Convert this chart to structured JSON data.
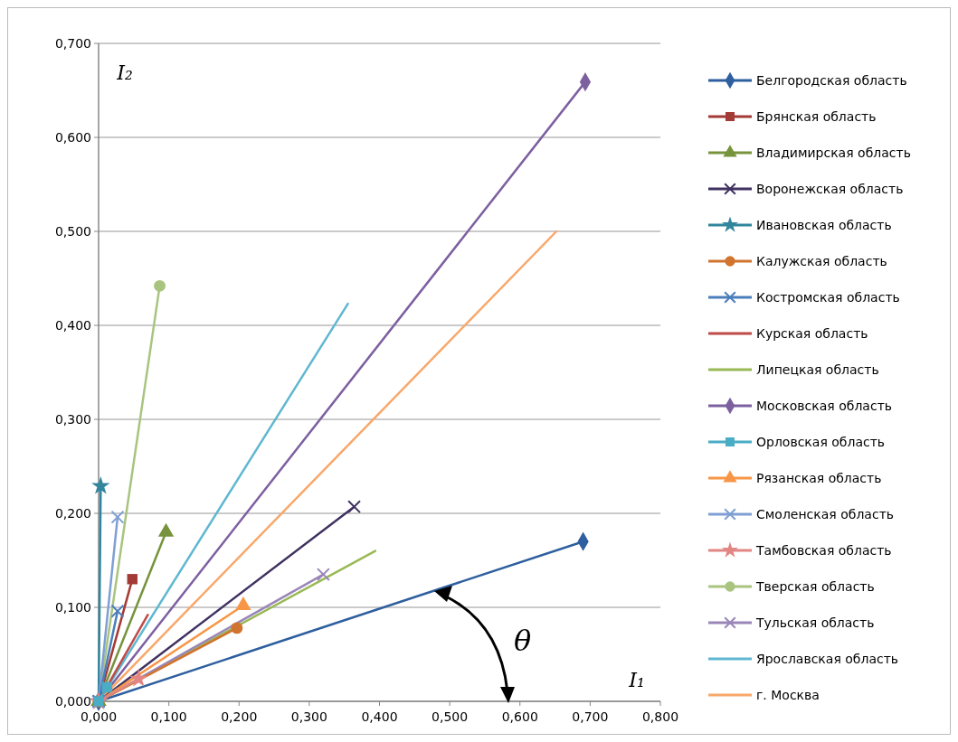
{
  "chart_data": {
    "type": "line",
    "xlabel": "I₁",
    "ylabel": "I₂",
    "annotations": [
      "θ"
    ],
    "xlim": [
      0,
      0.8
    ],
    "ylim": [
      0,
      0.7
    ],
    "xticks": [
      {
        "value": 0,
        "label": "0,000"
      },
      {
        "value": 0.1,
        "label": "0,100"
      },
      {
        "value": 0.2,
        "label": "0,200"
      },
      {
        "value": 0.3,
        "label": "0,300"
      },
      {
        "value": 0.4,
        "label": "0,400"
      },
      {
        "value": 0.5,
        "label": "0,500"
      },
      {
        "value": 0.6,
        "label": "0,600"
      },
      {
        "value": 0.7,
        "label": "0,700"
      },
      {
        "value": 0.8,
        "label": "0,800"
      }
    ],
    "yticks": [
      {
        "value": 0,
        "label": "0,000"
      },
      {
        "value": 0.1,
        "label": "0,100"
      },
      {
        "value": 0.2,
        "label": "0,200"
      },
      {
        "value": 0.3,
        "label": "0,300"
      },
      {
        "value": 0.4,
        "label": "0,400"
      },
      {
        "value": 0.5,
        "label": "0,500"
      },
      {
        "value": 0.6,
        "label": "0,600"
      },
      {
        "value": 0.7,
        "label": "0,700"
      }
    ],
    "grid": "y",
    "legend": "right",
    "series": [
      {
        "name": "Белгородская область",
        "color": "#2e5f9e",
        "marker": "diamond",
        "x": [
          0,
          0.69
        ],
        "values": [
          0,
          0.17
        ]
      },
      {
        "name": "Брянская область",
        "color": "#a33a35",
        "marker": "square",
        "x": [
          0,
          0.048
        ],
        "values": [
          0,
          0.13
        ]
      },
      {
        "name": "Владимирская область",
        "color": "#77933c",
        "marker": "triangle",
        "x": [
          0,
          0.096
        ],
        "values": [
          0,
          0.18
        ]
      },
      {
        "name": "Воронежская область",
        "color": "#3f3160",
        "marker": "cross",
        "x": [
          0,
          0.364
        ],
        "values": [
          0,
          0.207
        ]
      },
      {
        "name": "Ивановская область",
        "color": "#31859c",
        "marker": "star",
        "x": [
          0,
          0.003
        ],
        "values": [
          0,
          0.229
        ]
      },
      {
        "name": "Калужская область",
        "color": "#d0742f",
        "marker": "circle",
        "x": [
          0,
          0.197
        ],
        "values": [
          0,
          0.078
        ]
      },
      {
        "name": "Костромская область",
        "color": "#4a7ebb",
        "marker": "cross",
        "x": [
          0,
          0.027
        ],
        "values": [
          0,
          0.096
        ]
      },
      {
        "name": "Курская область",
        "color": "#be4b48",
        "marker": "none",
        "x": [
          0,
          0.07
        ],
        "values": [
          0,
          0.092
        ]
      },
      {
        "name": "Липецкая область",
        "color": "#98b954",
        "marker": "none",
        "x": [
          0,
          0.394
        ],
        "values": [
          0,
          0.16
        ]
      },
      {
        "name": "Московская область",
        "color": "#7d60a0",
        "marker": "diamond",
        "x": [
          0,
          0.693
        ],
        "values": [
          0,
          0.659
        ]
      },
      {
        "name": "Орловская область",
        "color": "#4bacc6",
        "marker": "square",
        "x": [
          0,
          0.012
        ],
        "values": [
          0,
          0.015
        ]
      },
      {
        "name": "Рязанская область",
        "color": "#f79646",
        "marker": "triangle",
        "x": [
          0,
          0.206
        ],
        "values": [
          0,
          0.102
        ]
      },
      {
        "name": "Смоленская область",
        "color": "#7f9fd4",
        "marker": "cross",
        "x": [
          0,
          0.027
        ],
        "values": [
          0,
          0.196
        ]
      },
      {
        "name": "Тамбовская область",
        "color": "#e28683",
        "marker": "star",
        "x": [
          0,
          0.057
        ],
        "values": [
          0,
          0.024
        ]
      },
      {
        "name": "Тверская область",
        "color": "#a9c47f",
        "marker": "circle",
        "x": [
          0,
          0.087
        ],
        "values": [
          0,
          0.442
        ]
      },
      {
        "name": "Тульская область",
        "color": "#9a86b8",
        "marker": "cross",
        "x": [
          0,
          0.32
        ],
        "values": [
          0,
          0.135
        ]
      },
      {
        "name": "Ярославская область",
        "color": "#5fb7d1",
        "marker": "none",
        "x": [
          0,
          0.355
        ],
        "values": [
          0,
          0.423
        ]
      },
      {
        "name": "г. Москва",
        "color": "#f9a769",
        "marker": "none",
        "x": [
          0,
          0.652
        ],
        "values": [
          0,
          0.5
        ]
      }
    ]
  }
}
